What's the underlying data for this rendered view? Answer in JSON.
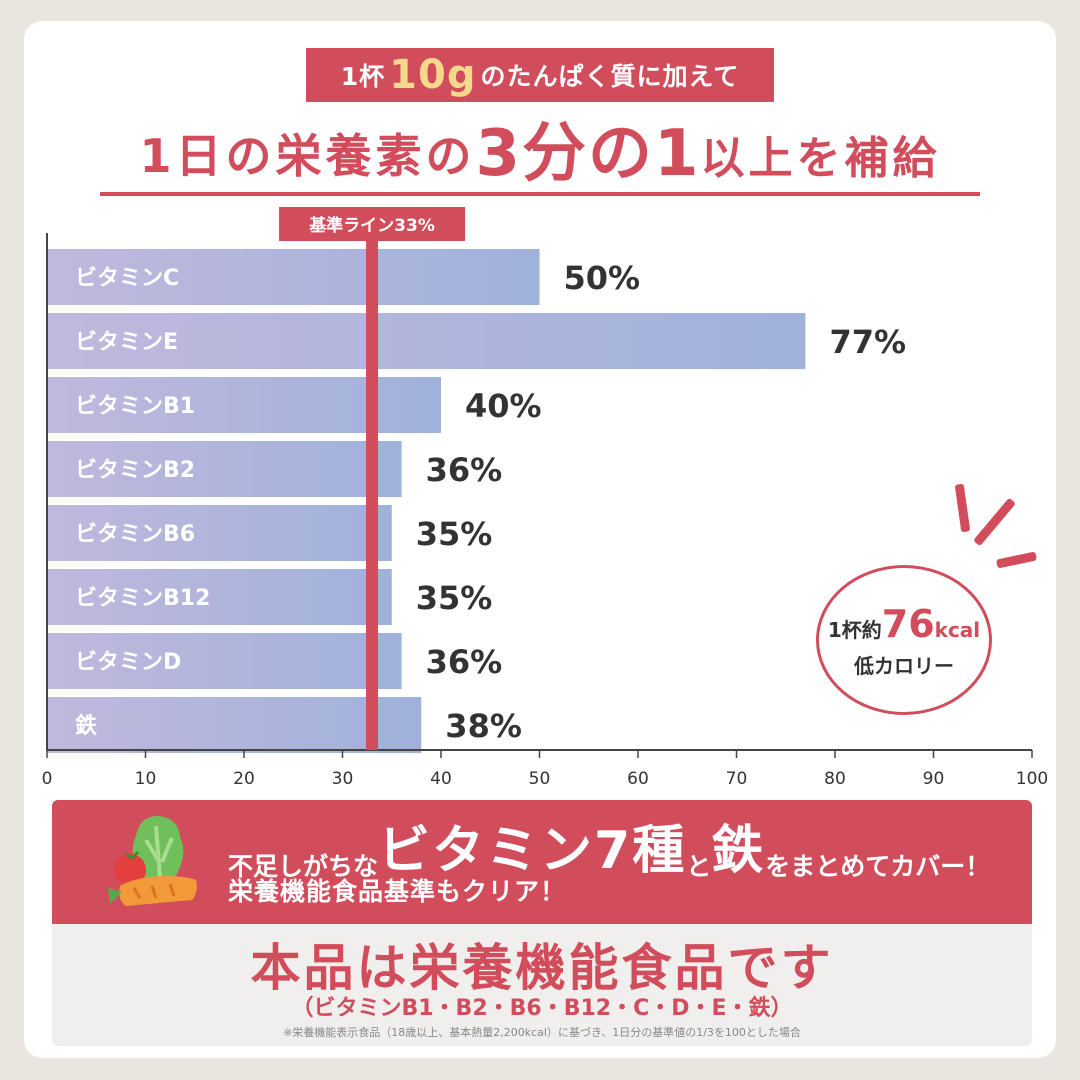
{
  "header": {
    "banner_prefix": "1杯",
    "banner_amount": "10g",
    "banner_suffix": "のたんぱく質に加えて",
    "headline_part1": "1日の栄養素の",
    "headline_part2": "3分の1",
    "headline_part3": "以上を補給"
  },
  "chart_data": {
    "type": "bar",
    "orientation": "horizontal",
    "categories": [
      "ビタミンC",
      "ビタミンE",
      "ビタミンB1",
      "ビタミンB2",
      "ビタミンB6",
      "ビタミンB12",
      "ビタミンD",
      "鉄"
    ],
    "values": [
      50,
      77,
      40,
      36,
      35,
      35,
      36,
      38
    ],
    "value_labels": [
      "50%",
      "77%",
      "40%",
      "36%",
      "35%",
      "35%",
      "36%",
      "38%"
    ],
    "xlim": [
      0,
      100
    ],
    "xticks": [
      "0",
      "10",
      "20",
      "30",
      "40",
      "50",
      "60",
      "70",
      "80",
      "90",
      "100"
    ],
    "reference_line": {
      "value": 33,
      "label": "基準ライン33%"
    },
    "grid": false,
    "colors": {
      "bar_start": "#c1b8dd",
      "bar_end": "#9fb2db",
      "reference": "#d14d5c",
      "axis": "#444444"
    }
  },
  "badge": {
    "prefix": "1杯約",
    "number": "76",
    "unit": "kcal",
    "line2": "低カロリー"
  },
  "promo": {
    "line1_a": "不足しがちな",
    "line1_b": "ビタミン7種",
    "line1_c": "と",
    "line1_d": "鉄",
    "line1_e": "をまとめてカバー！",
    "line2": "栄養機能食品基準もクリア！",
    "icon": "vegetables-icon"
  },
  "footer": {
    "title": "本品は栄養機能食品です",
    "subtitle": "（ビタミンB1・B2・B6・B12・C・D・E・鉄）",
    "note": "※栄養機能表示食品（18歳以上、基本熱量2,200kcal）に基づき、1日分の基準値の1/3を100とした場合"
  },
  "colors": {
    "accent": "#d14d5c",
    "background": "#e9e6e0",
    "card": "#ffffff"
  }
}
